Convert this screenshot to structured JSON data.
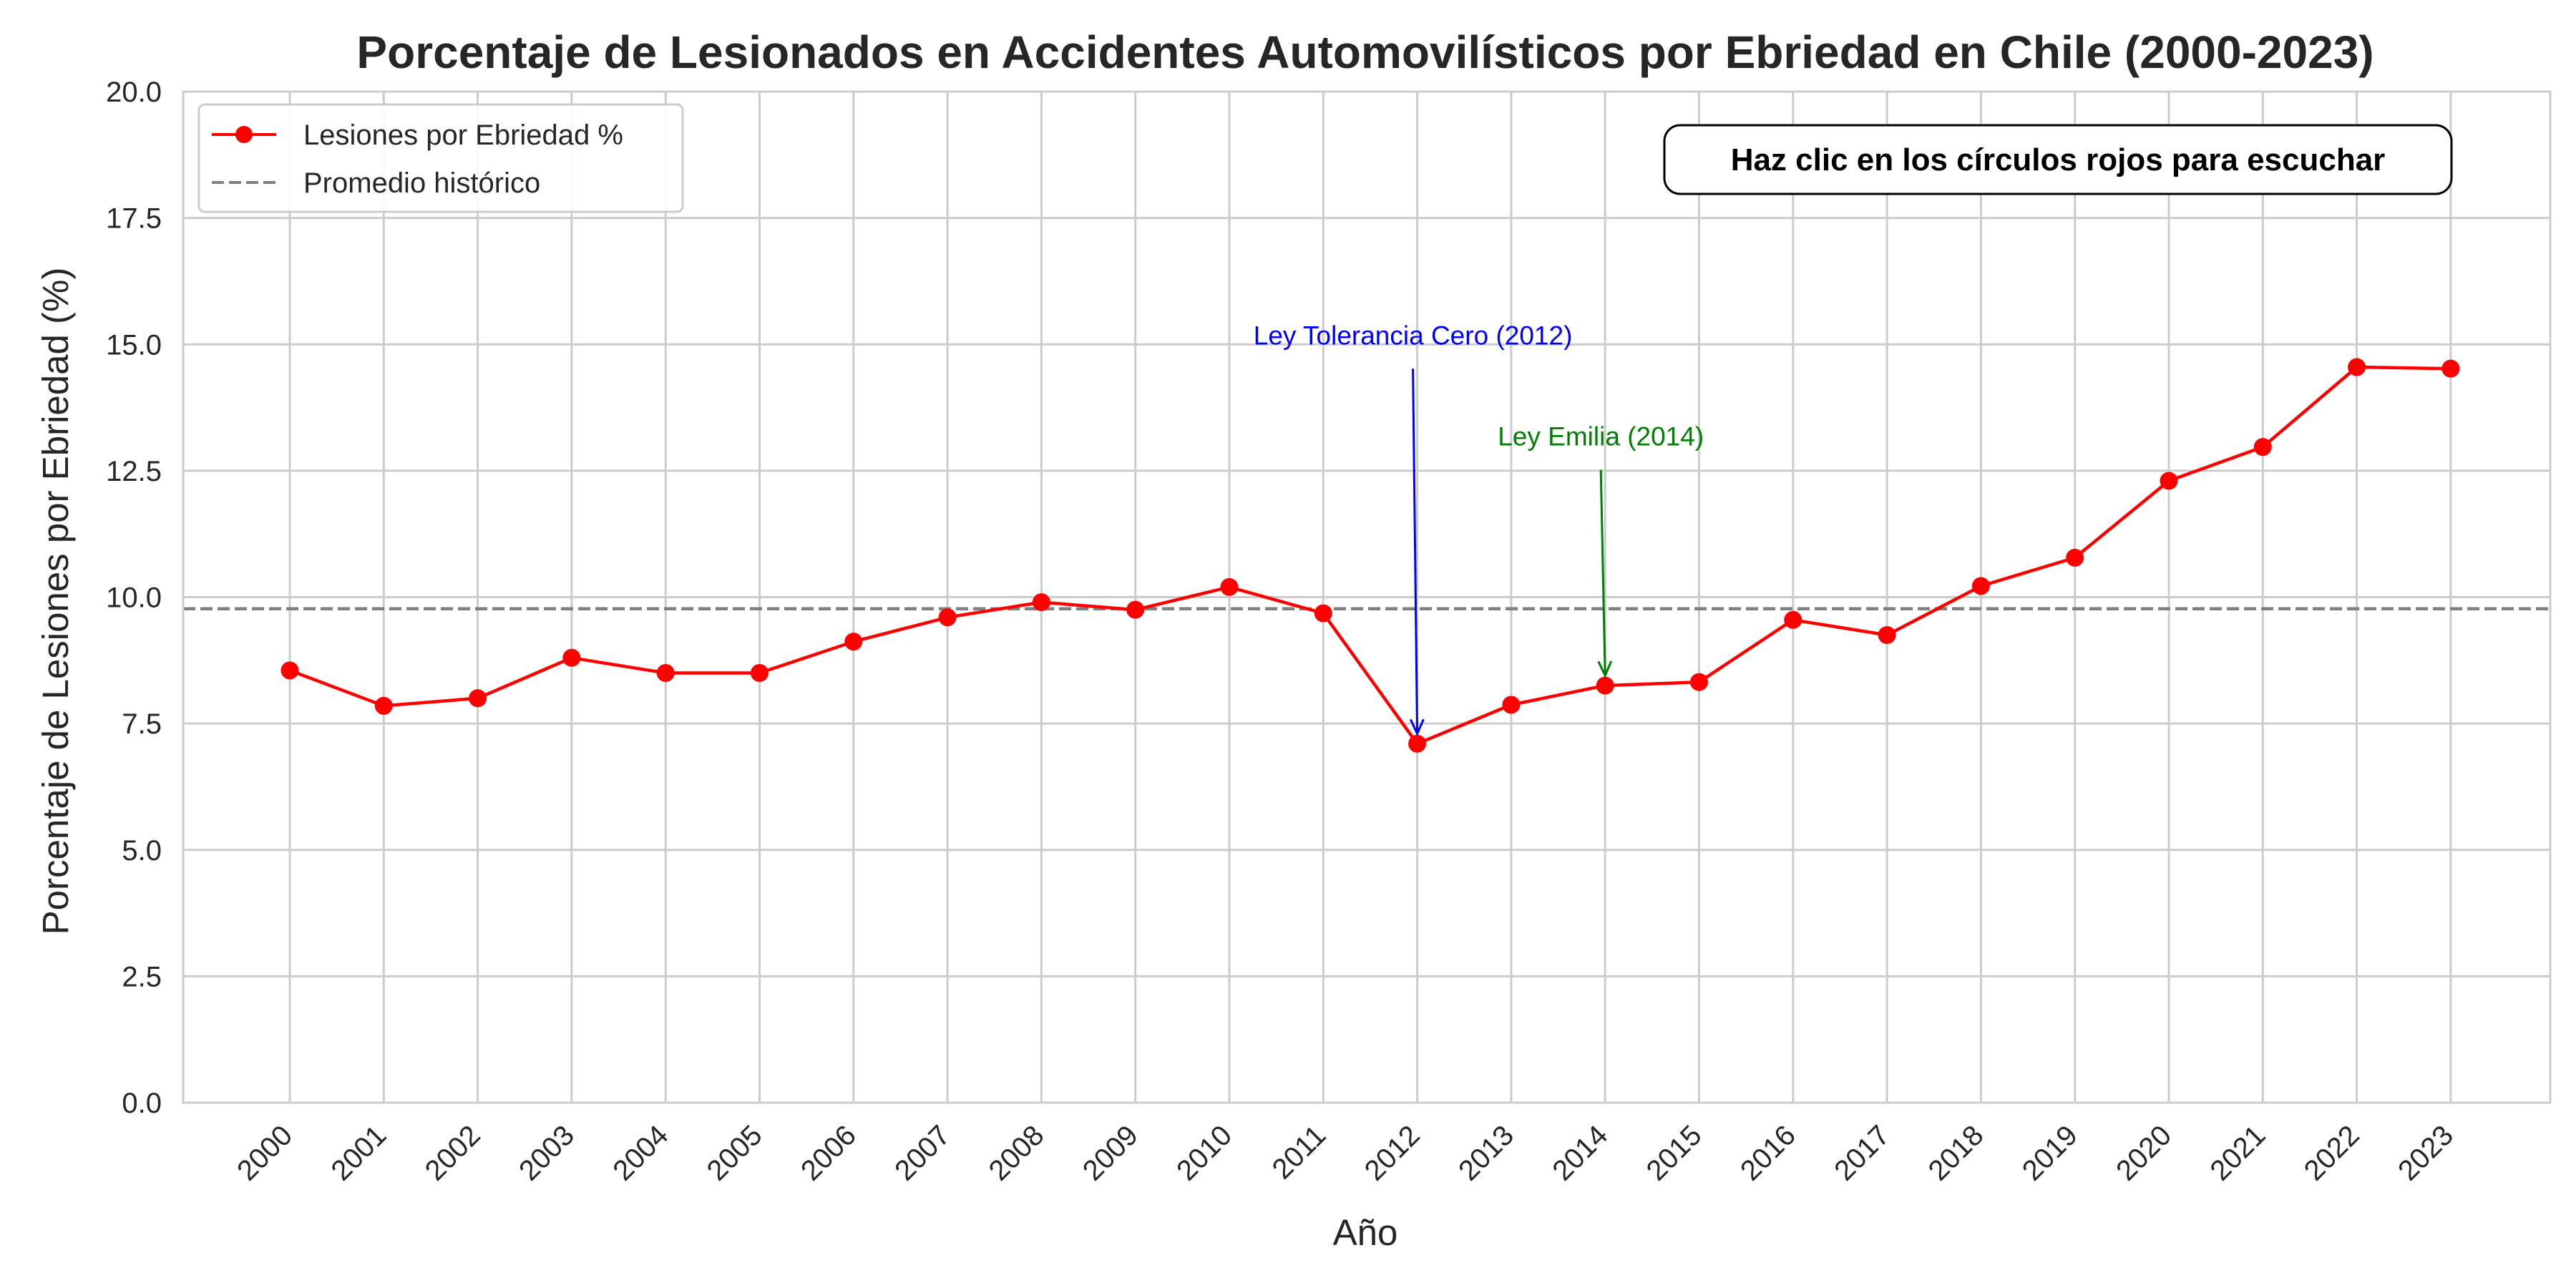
{
  "chart_data": {
    "type": "line",
    "title": "Porcentaje de Lesionados en Accidentes Automovilísticos por Ebriedad en Chile (2000-2023)",
    "xlabel": "Año",
    "ylabel": "Porcentaje de Lesiones por Ebriedad (%)",
    "ylim": [
      0,
      20
    ],
    "yticks": [
      "0.0",
      "2.5",
      "5.0",
      "7.5",
      "10.0",
      "12.5",
      "15.0",
      "17.5",
      "20.0"
    ],
    "grid": true,
    "legend_position": "upper-left",
    "x": [
      "2000",
      "2001",
      "2002",
      "2003",
      "2004",
      "2005",
      "2006",
      "2007",
      "2008",
      "2009",
      "2010",
      "2011",
      "2012",
      "2013",
      "2014",
      "2015",
      "2016",
      "2017",
      "2018",
      "2019",
      "2020",
      "2021",
      "2022",
      "2023"
    ],
    "series": [
      {
        "name": "Lesiones por Ebriedad %",
        "color": "#ff0000",
        "marker": "circle",
        "values": [
          8.55,
          7.85,
          8.0,
          8.8,
          8.5,
          8.5,
          9.12,
          9.6,
          9.9,
          9.75,
          10.2,
          9.68,
          7.1,
          7.87,
          8.25,
          8.32,
          9.55,
          9.25,
          10.22,
          10.78,
          12.3,
          12.97,
          14.55,
          14.52
        ]
      }
    ],
    "reference_line": {
      "name": "Promedio histórico",
      "value": 9.77,
      "style": "dashed",
      "color": "#808080"
    },
    "annotations": [
      {
        "text": "Ley Tolerancia Cero (2012)",
        "x": "2012",
        "y": 7.1,
        "text_y": 15.0,
        "color": "#0000ff"
      },
      {
        "text": "Ley Emilia (2014)",
        "x": "2014",
        "y": 8.25,
        "text_y": 13.0,
        "color": "#008000"
      }
    ],
    "note": "Haz clic en los círculos rojos para escuchar"
  }
}
